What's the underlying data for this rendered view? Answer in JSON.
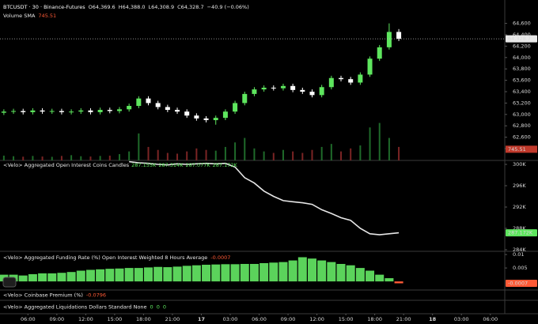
{
  "chart_data": [
    {
      "type": "candlestick",
      "title": "BTCUSDT · 30 · Binance-Futures",
      "legend": {
        "labels": [
          "O",
          "H",
          "L",
          "C"
        ],
        "values": [
          64369.6,
          64388.0,
          64308.9,
          64328.7
        ],
        "value_labels": [
          "64,369.6",
          "64,388.0",
          "64,308.9",
          "64,328.7"
        ],
        "change": "−40.9 (−0.06%)"
      },
      "x": [
        3.5,
        4.5,
        5.5,
        6.5,
        7.5,
        8.5,
        9.5,
        10.5,
        11.5,
        12.5,
        13.5,
        14.5,
        15.5,
        16.5,
        17.5,
        18.5,
        19.5,
        20.5,
        21.5,
        22.5,
        23.5,
        24.5,
        25.5,
        26.5,
        27.5,
        28.5,
        29.5,
        30.5,
        31.5,
        32.5,
        33.5,
        34.5,
        35.5,
        36.5,
        37.5,
        38.5,
        39.5,
        40.5,
        41.5,
        42.5,
        43.5,
        44.5
      ],
      "open": [
        63030,
        63050,
        63060,
        63040,
        63070,
        63050,
        63060,
        63040,
        63050,
        63070,
        63040,
        63080,
        63060,
        63090,
        63150,
        63280,
        63200,
        63130,
        63080,
        63050,
        62980,
        62930,
        62900,
        62940,
        63050,
        63200,
        63360,
        63440,
        63470,
        63460,
        63500,
        63430,
        63400,
        63340,
        63480,
        63640,
        63620,
        63560,
        63700,
        63980,
        64180,
        64450
      ],
      "high": [
        63090,
        63100,
        63100,
        63110,
        63110,
        63100,
        63100,
        63090,
        63110,
        63110,
        63120,
        63120,
        63130,
        63190,
        63320,
        63320,
        63240,
        63170,
        63120,
        63090,
        63020,
        62970,
        62980,
        63090,
        63240,
        63400,
        63480,
        63510,
        63510,
        63540,
        63540,
        63470,
        63440,
        63520,
        63680,
        63680,
        63660,
        63740,
        64020,
        64220,
        64600,
        64500
      ],
      "low": [
        62990,
        63010,
        63000,
        63000,
        63010,
        63010,
        63000,
        63000,
        63010,
        63000,
        63000,
        63020,
        63020,
        63050,
        63110,
        63160,
        63090,
        63040,
        63010,
        62940,
        62890,
        62860,
        62820,
        62900,
        63010,
        63160,
        63320,
        63400,
        63420,
        63420,
        63390,
        63360,
        63300,
        63300,
        63440,
        63580,
        63520,
        63520,
        63660,
        63940,
        64140,
        64290
      ],
      "close": [
        63050,
        63060,
        63040,
        63070,
        63050,
        63060,
        63040,
        63050,
        63070,
        63040,
        63080,
        63060,
        63090,
        63150,
        63280,
        63200,
        63130,
        63080,
        63050,
        62980,
        62930,
        62900,
        62940,
        63050,
        63200,
        63360,
        63440,
        63470,
        63460,
        63500,
        63430,
        63400,
        63340,
        63480,
        63640,
        63620,
        63560,
        63700,
        63980,
        64180,
        64450,
        64330
      ],
      "up_color": "#5ee65e",
      "down_color": "#ffffff",
      "ylim": [
        62192,
        65011
      ],
      "yticks": [
        {
          "value": 62400,
          "label": "62,400"
        },
        {
          "value": 62600,
          "label": "62,600"
        },
        {
          "value": 62800,
          "label": "62,800"
        },
        {
          "value": 63000,
          "label": "63,000"
        },
        {
          "value": 63200,
          "label": "63,200"
        },
        {
          "value": 63400,
          "label": "63,400"
        },
        {
          "value": 63600,
          "label": "63,600"
        },
        {
          "value": 63800,
          "label": "63,800"
        },
        {
          "value": 64000,
          "label": "64,000"
        },
        {
          "value": 64200,
          "label": "64,200"
        },
        {
          "value": 64400,
          "label": "64,400"
        },
        {
          "value": 64600,
          "label": "64,600"
        }
      ],
      "last_value": 64328.7,
      "last_value_label": "64,328.7",
      "volume": {
        "name": "Volume SMA",
        "sma": 745.51,
        "ylim": [
          0,
          10700
        ],
        "up_color": "#1f6a2a",
        "down_color": "#7a2424",
        "values": [
          320,
          280,
          250,
          300,
          260,
          240,
          300,
          350,
          280,
          260,
          300,
          320,
          420,
          600,
          1800,
          900,
          700,
          500,
          450,
          600,
          800,
          700,
          650,
          900,
          1200,
          1500,
          800,
          600,
          500,
          700,
          600,
          500,
          700,
          900,
          1100,
          600,
          800,
          1000,
          2200,
          2500,
          1500,
          900
        ]
      },
      "xlim": [
        3.1,
        55.5
      ],
      "xticks": [
        {
          "value": 6,
          "label": "06:00"
        },
        {
          "value": 9,
          "label": "09:00"
        },
        {
          "value": 12,
          "label": "12:00"
        },
        {
          "value": 15,
          "label": "15:00"
        },
        {
          "value": 18,
          "label": "18:00"
        },
        {
          "value": 21,
          "label": "21:00"
        },
        {
          "value": 24,
          "label": "17"
        },
        {
          "value": 27,
          "label": "03:00"
        },
        {
          "value": 30,
          "label": "06:00"
        },
        {
          "value": 33,
          "label": "09:00"
        },
        {
          "value": 36,
          "label": "12:00"
        },
        {
          "value": 39,
          "label": "15:00"
        },
        {
          "value": 42,
          "label": "18:00"
        },
        {
          "value": 45,
          "label": "21:00"
        },
        {
          "value": 48,
          "label": "18"
        },
        {
          "value": 51,
          "label": "03:00"
        },
        {
          "value": 54,
          "label": "06:00"
        }
      ],
      "grid": false
    },
    {
      "type": "line",
      "title": "<Velo> Aggregated Open Interest Coins Candles",
      "legend_values": [
        287155,
        287314,
        287077,
        287172
      ],
      "legend_value_labels": [
        "287.155K",
        "287.314K",
        "287.077K",
        "287.172K"
      ],
      "x": [
        16.5,
        17.5,
        18.5,
        19.5,
        20.5,
        21.5,
        22.5,
        23.5,
        24.5,
        25.5,
        26.5,
        27.5,
        28.5,
        29.5,
        30.5,
        31.5,
        32.5,
        33.5,
        34.5,
        35.5,
        36.5,
        37.5,
        38.5,
        39.5,
        40.5,
        41.5,
        42.5,
        43.5,
        44.5
      ],
      "values": [
        300500,
        300300,
        300200,
        300000,
        299900,
        300100,
        300000,
        300100,
        300200,
        300100,
        300200,
        299500,
        297500,
        296500,
        295000,
        294000,
        293200,
        293000,
        292800,
        292500,
        291500,
        290800,
        290000,
        289500,
        288000,
        287000,
        286800,
        287000,
        287172
      ],
      "color": "#e6e6e6",
      "ylim": [
        283704,
        300741
      ],
      "yticks": [
        {
          "value": 284000,
          "label": "284K"
        },
        {
          "value": 288000,
          "label": "288K"
        },
        {
          "value": 292000,
          "label": "292K"
        },
        {
          "value": 296000,
          "label": "296K"
        },
        {
          "value": 300000,
          "label": "300K"
        }
      ],
      "last_value": 287172,
      "last_value_label": "287.172K",
      "last_color": "#5ee65e"
    },
    {
      "type": "bar",
      "title": "<Velo> Aggregated Funding Rate (%) Open Interest Weighted 8 Hours Average",
      "x": [
        3.5,
        4.5,
        5.5,
        6.5,
        7.5,
        8.5,
        9.5,
        10.5,
        11.5,
        12.5,
        13.5,
        14.5,
        15.5,
        16.5,
        17.5,
        18.5,
        19.5,
        20.5,
        21.5,
        22.5,
        23.5,
        24.5,
        25.5,
        26.5,
        27.5,
        28.5,
        29.5,
        30.5,
        31.5,
        32.5,
        33.5,
        34.5,
        35.5,
        36.5,
        37.5,
        38.5,
        39.5,
        40.5,
        41.5,
        42.5,
        43.5,
        44.5
      ],
      "values": [
        0.0025,
        0.0025,
        0.0022,
        0.0027,
        0.003,
        0.003,
        0.0032,
        0.0035,
        0.004,
        0.0043,
        0.0045,
        0.0047,
        0.0048,
        0.005,
        0.005,
        0.0052,
        0.0054,
        0.0053,
        0.0055,
        0.0058,
        0.006,
        0.0062,
        0.0063,
        0.0064,
        0.0064,
        0.0065,
        0.0065,
        0.0068,
        0.007,
        0.0072,
        0.0078,
        0.009,
        0.0085,
        0.0078,
        0.0072,
        0.0065,
        0.006,
        0.005,
        0.004,
        0.0025,
        0.0012,
        -0.0007
      ],
      "color": "#5bd35b",
      "negative_color": "#ff5a36",
      "ylim": [
        -0.0032,
        0.0112
      ],
      "yticks": [
        0.005,
        0.01
      ],
      "last_value": -0.0007
    },
    {
      "type": "indicator",
      "title": "<Velo> Coinbase Premium (%)",
      "values": [
        -0.0796
      ],
      "color": "#ff5a36"
    },
    {
      "type": "indicator",
      "title": "<Velo> Aggregated Liquidations Dollars Standard None",
      "values": [
        0,
        0,
        0
      ],
      "color": "#5ee65e"
    }
  ]
}
